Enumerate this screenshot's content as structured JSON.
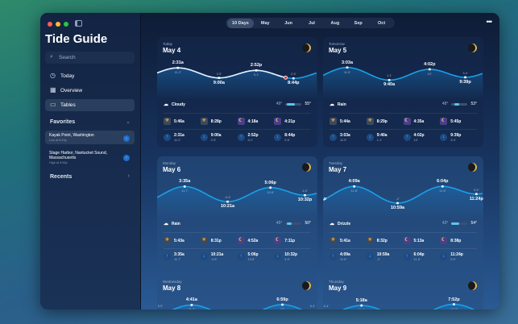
{
  "app": {
    "title": "Tide Guide",
    "search_placeholder": "Search"
  },
  "sidebar": {
    "nav": [
      {
        "label": "Today",
        "icon": "clock-icon"
      },
      {
        "label": "Overview",
        "icon": "overview-icon"
      },
      {
        "label": "Tables",
        "icon": "calendar-icon"
      }
    ],
    "favorites_title": "Favorites",
    "favorites": [
      {
        "name": "Kayak Point, Washington",
        "sub": "Low at 8:43p",
        "dir": "down"
      },
      {
        "name": "Stage Harbor, Nantucket Sound, Massachusetts",
        "sub": "High at 9:53p",
        "dir": "up"
      }
    ],
    "recents_title": "Recents"
  },
  "toolbar": {
    "tabs": [
      "10 Days",
      "May",
      "Jun",
      "Jul",
      "Aug",
      "Sep",
      "Oct"
    ],
    "active": "10 Days",
    "more": "•••"
  },
  "colors": {
    "accent": "#1aa0e8",
    "now": "#e0303a"
  },
  "days": [
    {
      "label": "Today",
      "date": "May 4",
      "now": "7:30p",
      "tides": [
        {
          "t": "2:31a",
          "h": "11.2'",
          "type": "high"
        },
        {
          "t": "9:00a",
          "h": "2.9'",
          "type": "low"
        },
        {
          "t": "2:52p",
          "h": "9.1'",
          "type": "high"
        },
        {
          "t": "8:44p",
          "h": "2.5'",
          "type": "low"
        }
      ],
      "weather": "Cloudy",
      "lo": "49°",
      "hi": "55°",
      "range": [
        0.1,
        0.6
      ],
      "sun": [
        "5:46a",
        "8:28p",
        "4:18a",
        "4:21p"
      ]
    },
    {
      "label": "Tomorrow",
      "date": "May 5",
      "tides": [
        {
          "t": "3:03a",
          "h": "11.5'",
          "type": "high"
        },
        {
          "t": "9:40a",
          "h": "1.1'",
          "type": "low"
        },
        {
          "t": "4:02p",
          "h": "10'",
          "type": "high"
        },
        {
          "t": "9:39p",
          "h": "3.4'",
          "type": "low"
        }
      ],
      "weather": "Rain",
      "lo": "48°",
      "hi": "53°",
      "range": [
        0.2,
        0.5
      ],
      "sun": [
        "5:44a",
        "8:29p",
        "4:35a",
        "5:45p"
      ]
    },
    {
      "label": "Monday",
      "date": "May 6",
      "tides": [
        {
          "t": "3:35a",
          "h": "11.7'",
          "type": "high"
        },
        {
          "t": "10:21a",
          "h": "-0.8'",
          "type": "low"
        },
        {
          "t": "5:06p",
          "h": "10.8'",
          "type": "high"
        },
        {
          "t": "10:32p",
          "h": "4.5'",
          "type": "low"
        }
      ],
      "weather": "Rain",
      "lo": "45°",
      "hi": "50°",
      "range": [
        0.1,
        0.4
      ],
      "sun": [
        "5:43a",
        "8:31p",
        "4:52a",
        "7:11p"
      ]
    },
    {
      "label": "Tuesday",
      "date": "May 7",
      "edge_left": "1p",
      "tides": [
        {
          "t": "4:09a",
          "h": "11.8'",
          "type": "high"
        },
        {
          "t": "10:59a",
          "h": "-2'",
          "type": "low"
        },
        {
          "t": "6:04p",
          "h": "11.8'",
          "type": "high"
        },
        {
          "t": "11:24p",
          "h": "5.5'",
          "type": "low"
        }
      ],
      "weather": "Drizzle",
      "lo": "43°",
      "hi": "54°",
      "range": [
        0.0,
        0.5
      ],
      "sun": [
        "5:41a",
        "8:32p",
        "5:13a",
        "8:38p"
      ]
    },
    {
      "label": "Wednesday",
      "date": "May 8",
      "edge_heights": [
        "5.5'",
        "6.4'"
      ],
      "tides": [
        {
          "t": "4:41a",
          "h": "11.7'",
          "type": "high"
        },
        {
          "t": "6:59p",
          "h": "12'",
          "type": "high"
        }
      ]
    },
    {
      "label": "Thursday",
      "date": "May 9",
      "edge_heights": [
        "6.4'",
        ""
      ],
      "tides": [
        {
          "t": "5:18a",
          "h": "11.3'",
          "type": "high"
        },
        {
          "t": "7:52p",
          "h": "12.3'",
          "type": "high"
        }
      ]
    }
  ]
}
